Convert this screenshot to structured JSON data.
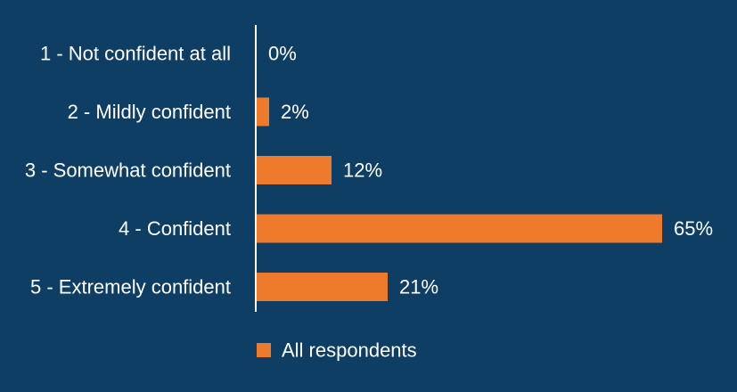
{
  "chart_data": {
    "type": "bar",
    "orientation": "horizontal",
    "categories": [
      "1 - Not confident at all",
      "2 - Mildly confident",
      "3 - Somewhat confident",
      "4 - Confident",
      "5 - Extremely confident"
    ],
    "series": [
      {
        "name": "All respondents",
        "values": [
          0,
          2,
          12,
          65,
          21
        ],
        "value_labels": [
          "0%",
          "2%",
          "12%",
          "65%",
          "21%"
        ]
      }
    ],
    "xlim": [
      0,
      65
    ],
    "grid": false,
    "legend": "bottom-center",
    "colors": {
      "background": "#0e3e63",
      "bar": "#ee7a2b",
      "axis": "#ffffff",
      "text": "#ffffff"
    }
  }
}
